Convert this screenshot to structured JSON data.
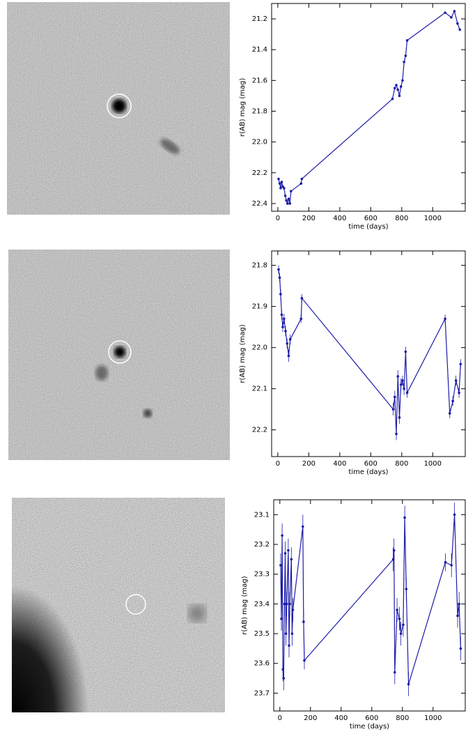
{
  "chart_data": [
    {
      "type": "line",
      "x_label": "time (days)",
      "y_label": "r(AB) mag (mag)",
      "xlim": [
        -40,
        1210
      ],
      "xticks": [
        0,
        200,
        400,
        600,
        800,
        1000
      ],
      "ylim": [
        22.45,
        21.1
      ],
      "yticks": [
        21.2,
        21.4,
        21.6,
        21.8,
        {
          "value": 22,
          "label": "22.0"
        },
        22.2,
        22.4
      ],
      "x": [
        5,
        12,
        18,
        25,
        32,
        40,
        48,
        55,
        62,
        70,
        78,
        85,
        150,
        155,
        740,
        755,
        765,
        775,
        785,
        795,
        805,
        815,
        825,
        835,
        1080,
        1120,
        1140,
        1160,
        1175
      ],
      "series": [
        {
          "color": "#1c1ca8",
          "values": [
            22.24,
            22.27,
            22.3,
            22.26,
            22.29,
            22.3,
            22.35,
            22.38,
            22.4,
            22.37,
            22.4,
            22.32,
            22.27,
            22.24,
            21.72,
            21.65,
            21.63,
            21.66,
            21.7,
            21.64,
            21.6,
            21.48,
            21.44,
            21.34,
            21.16,
            21.19,
            21.15,
            21.23,
            21.27
          ]
        }
      ]
    },
    {
      "type": "line",
      "x_label": "time (days)",
      "y_label": "r(AB) mag (mag)",
      "xlim": [
        -40,
        1210
      ],
      "xticks": [
        0,
        200,
        400,
        600,
        800,
        1000
      ],
      "ylim": [
        22.265,
        21.765
      ],
      "yticks": [
        21.8,
        21.9,
        {
          "value": 22,
          "label": "22.0"
        },
        22.1,
        22.2
      ],
      "x": [
        5,
        12,
        18,
        25,
        32,
        40,
        50,
        60,
        70,
        80,
        150,
        155,
        745,
        755,
        765,
        775,
        785,
        795,
        805,
        815,
        825,
        835,
        1080,
        1110,
        1130,
        1150,
        1170,
        1180
      ],
      "series": [
        {
          "color": "#1c1ca8",
          "values": [
            21.81,
            21.83,
            21.87,
            21.92,
            21.95,
            21.93,
            21.96,
            21.99,
            22.02,
            21.98,
            21.93,
            21.88,
            22.15,
            22.12,
            22.21,
            22.07,
            22.17,
            22.09,
            22.08,
            22.1,
            22.01,
            22.11,
            21.93,
            22.16,
            22.13,
            22.08,
            22.11,
            22.04
          ],
          "errors": [
            0.01,
            0.01,
            0.012,
            0.012,
            0.012,
            0.012,
            0.012,
            0.012,
            0.015,
            0.012,
            0.01,
            0.01,
            0.015,
            0.015,
            0.015,
            0.015,
            0.015,
            0.015,
            0.012,
            0.015,
            0.012,
            0.012,
            0.01,
            0.012,
            0.012,
            0.012,
            0.012,
            0.012
          ]
        }
      ]
    },
    {
      "type": "line",
      "x_label": "time (days)",
      "y_label": "r(AB) mag (mag)",
      "xlim": [
        -40,
        1210
      ],
      "xticks": [
        0,
        200,
        400,
        600,
        800,
        1000
      ],
      "ylim": [
        23.76,
        23.05
      ],
      "yticks": [
        23.1,
        23.2,
        23.3,
        23.4,
        23.5,
        23.6,
        23.7
      ],
      "x": [
        5,
        10,
        15,
        20,
        25,
        30,
        35,
        40,
        45,
        55,
        60,
        65,
        75,
        80,
        85,
        150,
        155,
        160,
        740,
        745,
        750,
        765,
        780,
        790,
        805,
        815,
        825,
        840,
        1080,
        1120,
        1140,
        1160,
        1170,
        1180
      ],
      "series": [
        {
          "color": "#1c1ca8",
          "values": [
            23.27,
            23.45,
            23.17,
            23.62,
            23.65,
            23.4,
            23.23,
            23.5,
            23.4,
            23.22,
            23.54,
            23.4,
            23.25,
            23.5,
            23.42,
            23.14,
            23.46,
            23.59,
            23.25,
            23.22,
            23.63,
            23.42,
            23.45,
            23.5,
            23.47,
            23.11,
            23.35,
            23.67,
            23.26,
            23.27,
            23.1,
            23.44,
            23.4,
            23.55
          ],
          "errors": [
            0.04,
            0.04,
            0.04,
            0.04,
            0.04,
            0.04,
            0.04,
            0.04,
            0.04,
            0.04,
            0.04,
            0.04,
            0.04,
            0.04,
            0.04,
            0.04,
            0.04,
            0.03,
            0.04,
            0.04,
            0.04,
            0.04,
            0.04,
            0.04,
            0.04,
            0.04,
            0.04,
            0.04,
            0.03,
            0.04,
            0.04,
            0.04,
            0.04,
            0.04
          ]
        }
      ]
    }
  ]
}
